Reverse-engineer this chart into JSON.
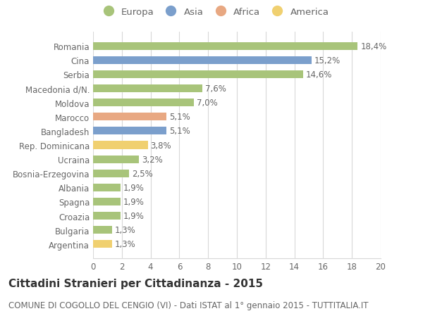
{
  "categories": [
    "Argentina",
    "Bulgaria",
    "Croazia",
    "Spagna",
    "Albania",
    "Bosnia-Erzegovina",
    "Ucraina",
    "Rep. Dominicana",
    "Bangladesh",
    "Marocco",
    "Moldova",
    "Macedonia d/N.",
    "Serbia",
    "Cina",
    "Romania"
  ],
  "values": [
    1.3,
    1.3,
    1.9,
    1.9,
    1.9,
    2.5,
    3.2,
    3.8,
    5.1,
    5.1,
    7.0,
    7.6,
    14.6,
    15.2,
    18.4
  ],
  "labels": [
    "1,3%",
    "1,3%",
    "1,9%",
    "1,9%",
    "1,9%",
    "2,5%",
    "3,2%",
    "3,8%",
    "5,1%",
    "5,1%",
    "7,0%",
    "7,6%",
    "14,6%",
    "15,2%",
    "18,4%"
  ],
  "continents": [
    "America",
    "Europa",
    "Europa",
    "Europa",
    "Europa",
    "Europa",
    "Europa",
    "America",
    "Asia",
    "Africa",
    "Europa",
    "Europa",
    "Europa",
    "Asia",
    "Europa"
  ],
  "colors": {
    "Europa": "#a8c47a",
    "Asia": "#7b9fcc",
    "Africa": "#e8a882",
    "America": "#f0d070"
  },
  "legend_order": [
    "Europa",
    "Asia",
    "Africa",
    "America"
  ],
  "title": "Cittadini Stranieri per Cittadinanza - 2015",
  "subtitle": "COMUNE DI COGOLLO DEL CENGIO (VI) - Dati ISTAT al 1° gennaio 2015 - TUTTITALIA.IT",
  "xlim": [
    0,
    20
  ],
  "xticks": [
    0,
    2,
    4,
    6,
    8,
    10,
    12,
    14,
    16,
    18,
    20
  ],
  "bg_color": "#ffffff",
  "grid_color": "#d8d8d8",
  "bar_height": 0.55,
  "label_fontsize": 8.5,
  "title_fontsize": 11,
  "subtitle_fontsize": 8.5,
  "ytick_fontsize": 8.5,
  "xtick_fontsize": 8.5,
  "legend_fontsize": 9.5
}
